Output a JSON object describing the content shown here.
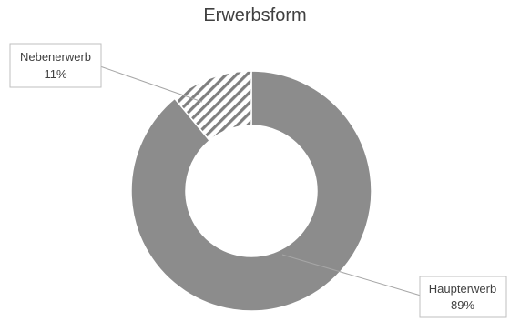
{
  "chart_data": {
    "type": "pie",
    "title": "Erwerbsform",
    "donut": true,
    "categories": [
      "Haupterwerb",
      "Nebenerwerb"
    ],
    "values": [
      89,
      11
    ],
    "value_labels": [
      "89%",
      "11%"
    ],
    "slice_fills": [
      "#8c8c8c",
      "hatched"
    ],
    "colors": {
      "main": "#8c8c8c",
      "hatch_stroke": "#7f7f7f",
      "background": "#ffffff"
    }
  }
}
